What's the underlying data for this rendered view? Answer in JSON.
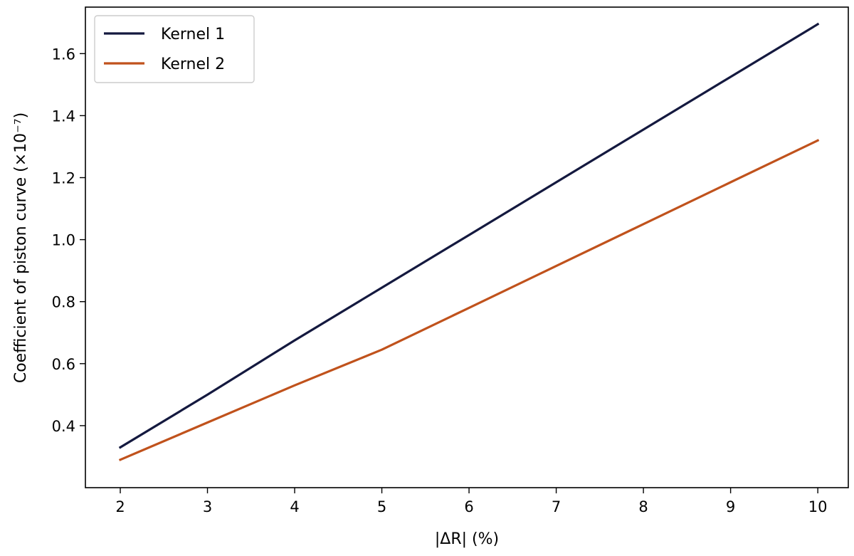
{
  "chart_data": {
    "type": "line",
    "xlabel": "|ΔR| (%)",
    "ylabel": "Coefficient of piston curve (×10⁻⁷)",
    "xlim": [
      1.6,
      10.35
    ],
    "ylim": [
      0.2,
      1.75
    ],
    "xticks": [
      2,
      3,
      4,
      5,
      6,
      7,
      8,
      9,
      10
    ],
    "yticks": [
      0.4,
      0.6,
      0.8,
      1.0,
      1.2,
      1.4,
      1.6
    ],
    "ytick_labels": [
      "0.4",
      "0.6",
      "0.8",
      "1.0",
      "1.2",
      "1.4",
      "1.6"
    ],
    "grid": false,
    "legend_position": "top-left",
    "series": [
      {
        "name": "Kernel 1",
        "color": "#14193f",
        "x": [
          2,
          3,
          4,
          5,
          6,
          7,
          8,
          9,
          10
        ],
        "y": [
          0.33,
          0.5,
          0.675,
          0.845,
          1.015,
          1.185,
          1.355,
          1.525,
          1.695
        ]
      },
      {
        "name": "Kernel 2",
        "color": "#c0521c",
        "x": [
          2,
          3,
          4,
          5,
          6,
          7,
          8,
          9,
          10
        ],
        "y": [
          0.29,
          0.41,
          0.53,
          0.645,
          0.78,
          0.915,
          1.05,
          1.185,
          1.32
        ]
      }
    ]
  }
}
